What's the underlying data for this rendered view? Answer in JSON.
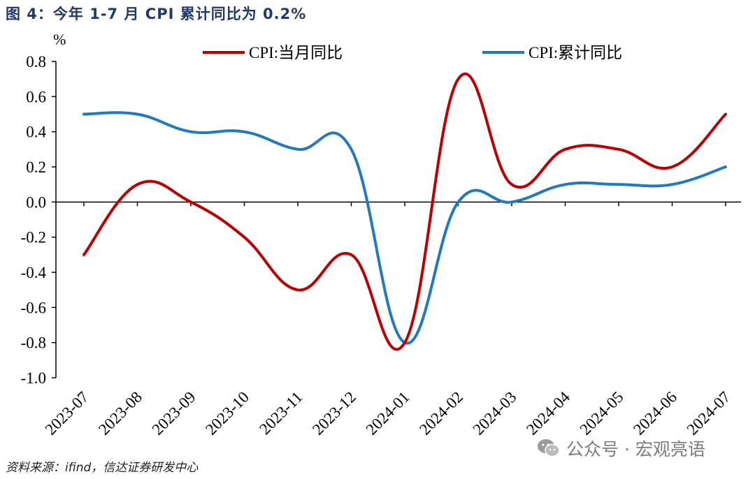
{
  "header": {
    "title": "图 4：今年 1-7 月 CPI 累计同比为 0.2%"
  },
  "footer": {
    "source": "资料来源：ifind，信达证券研发中心"
  },
  "watermark": {
    "text": "公众号 · 宏观亮语",
    "icon": "wechat-icon"
  },
  "chart_data": {
    "type": "line",
    "ylabel": "%",
    "categories": [
      "2023-07",
      "2023-08",
      "2023-09",
      "2023-10",
      "2023-11",
      "2023-12",
      "2024-01",
      "2024-02",
      "2024-03",
      "2024-04",
      "2024-05",
      "2024-06",
      "2024-07"
    ],
    "series": [
      {
        "name": "CPI:当月同比",
        "color": "#c00000",
        "values": [
          -0.3,
          0.1,
          0.0,
          -0.2,
          -0.5,
          -0.3,
          -0.8,
          0.7,
          0.1,
          0.3,
          0.3,
          0.2,
          0.5
        ]
      },
      {
        "name": "CPI:累计同比",
        "color": "#1f7ac0",
        "values": [
          0.5,
          0.5,
          0.4,
          0.4,
          0.3,
          0.3,
          -0.8,
          0.0,
          0.0,
          0.1,
          0.1,
          0.1,
          0.2
        ]
      }
    ],
    "ylim": [
      -1.0,
      0.8
    ],
    "yticks": [
      "0.8",
      "0.6",
      "0.4",
      "0.2",
      "0.0",
      "-0.2",
      "-0.4",
      "-0.6",
      "-0.8",
      "-1.0"
    ],
    "grid": false,
    "legend_position": "top"
  }
}
